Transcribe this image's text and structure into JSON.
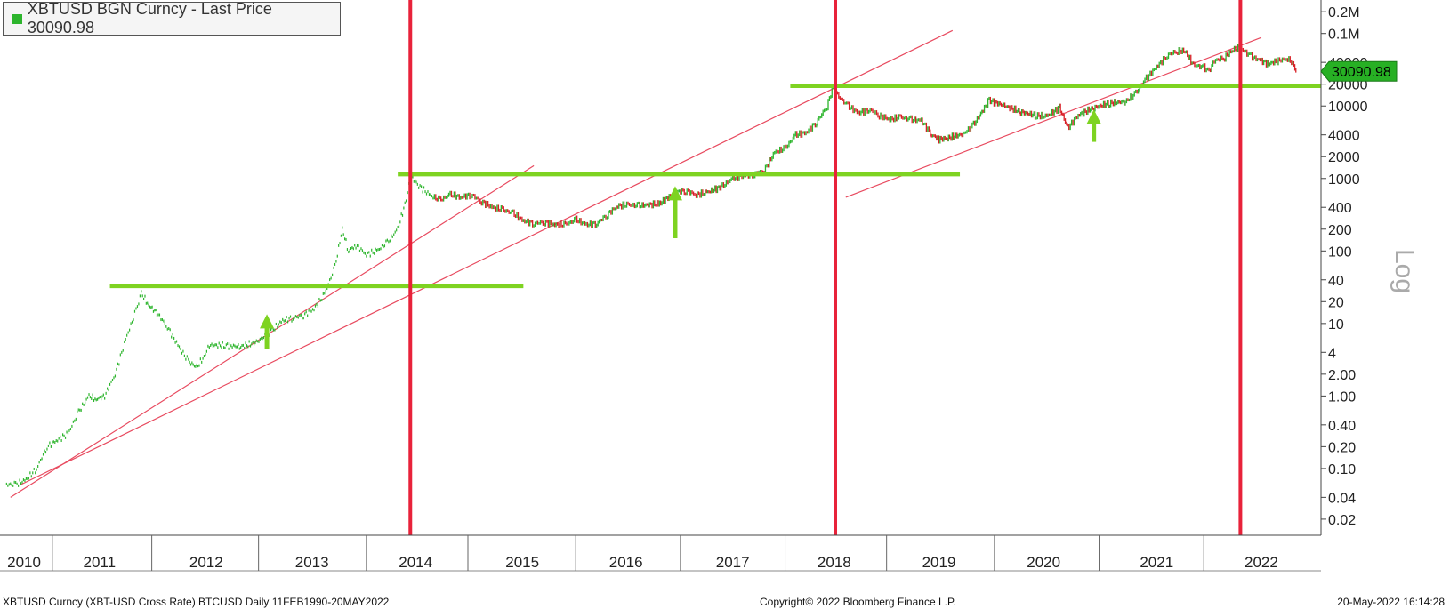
{
  "legend": {
    "label": "XBTUSD BGN Curncy - Last Price 30090.98",
    "color": "#2db52d"
  },
  "y_scale_label": "Log",
  "footer": {
    "left": "XBTUSD Curncy (XBT-USD Cross Rate) BTCUSD  Daily 11FEB1990-20MAY2022",
    "center": "Copyright© 2022 Bloomberg Finance L.P.",
    "right": "20-May-2022 16:14:28"
  },
  "colors": {
    "up": "#2db52d",
    "down": "#d81f26",
    "support": "#7ed321",
    "event": "#e8223a",
    "trend": "#e84a5f"
  },
  "chart_data": {
    "type": "line",
    "title": "XBTUSD BGN Curncy - Last Price 30090.98",
    "last_price": "30090.98",
    "y_scale": "log",
    "ylim": [
      0.012,
      290000
    ],
    "xlim": [
      2010.0,
      2022.62
    ],
    "y_ticks": [
      {
        "v": 0.02,
        "label": "0.02"
      },
      {
        "v": 0.04,
        "label": "0.04"
      },
      {
        "v": 0.1,
        "label": "0.10"
      },
      {
        "v": 0.2,
        "label": "0.20"
      },
      {
        "v": 0.4,
        "label": "0.40"
      },
      {
        "v": 1,
        "label": "1.00"
      },
      {
        "v": 2,
        "label": "2.00"
      },
      {
        "v": 4,
        "label": "4"
      },
      {
        "v": 10,
        "label": "10"
      },
      {
        "v": 20,
        "label": "20"
      },
      {
        "v": 40,
        "label": "40"
      },
      {
        "v": 100,
        "label": "100"
      },
      {
        "v": 200,
        "label": "200"
      },
      {
        "v": 400,
        "label": "400"
      },
      {
        "v": 1000,
        "label": "1000"
      },
      {
        "v": 2000,
        "label": "2000"
      },
      {
        "v": 4000,
        "label": "4000"
      },
      {
        "v": 10000,
        "label": "10000"
      },
      {
        "v": 20000,
        "label": "20000"
      },
      {
        "v": 40000,
        "label": "40000"
      },
      {
        "v": 100000,
        "label": "0.1M"
      },
      {
        "v": 200000,
        "label": "0.2M"
      }
    ],
    "x_ticks": [
      {
        "v": 2010.23,
        "label": "2010"
      },
      {
        "v": 2011.0,
        "label": "2011"
      },
      {
        "v": 2012.0,
        "label": "2012"
      },
      {
        "v": 2013.0,
        "label": "2013"
      },
      {
        "v": 2014.0,
        "label": "2014"
      },
      {
        "v": 2015.0,
        "label": "2015"
      },
      {
        "v": 2016.0,
        "label": "2016"
      },
      {
        "v": 2017.0,
        "label": "2017"
      },
      {
        "v": 2018.0,
        "label": "2018"
      },
      {
        "v": 2019.0,
        "label": "2019"
      },
      {
        "v": 2020.0,
        "label": "2020"
      },
      {
        "v": 2021.0,
        "label": "2021"
      },
      {
        "v": 2022.0,
        "label": "2022"
      }
    ],
    "series": [
      {
        "points": [
          [
            2010.05,
            0.06
          ],
          [
            2010.15,
            0.06
          ],
          [
            2010.25,
            0.07
          ],
          [
            2010.35,
            0.1
          ],
          [
            2010.45,
            0.2
          ],
          [
            2010.55,
            0.25
          ],
          [
            2010.65,
            0.3
          ],
          [
            2010.75,
            0.6
          ],
          [
            2010.85,
            1.0
          ],
          [
            2010.92,
            0.9
          ],
          [
            2011.0,
            1.0
          ],
          [
            2011.1,
            2.0
          ],
          [
            2011.2,
            6.0
          ],
          [
            2011.3,
            15.0
          ],
          [
            2011.35,
            26.0
          ],
          [
            2011.42,
            18.0
          ],
          [
            2011.5,
            14.0
          ],
          [
            2011.6,
            9.0
          ],
          [
            2011.7,
            5.0
          ],
          [
            2011.8,
            3.0
          ],
          [
            2011.88,
            2.5
          ],
          [
            2011.95,
            3.5
          ],
          [
            2012.0,
            5.0
          ],
          [
            2012.15,
            5.0
          ],
          [
            2012.3,
            4.8
          ],
          [
            2012.45,
            5.5
          ],
          [
            2012.6,
            8.0
          ],
          [
            2012.7,
            11.0
          ],
          [
            2012.8,
            12.0
          ],
          [
            2012.9,
            13.0
          ],
          [
            2013.0,
            16.0
          ],
          [
            2013.1,
            25.0
          ],
          [
            2013.2,
            60.0
          ],
          [
            2013.27,
            200.0
          ],
          [
            2013.33,
            100.0
          ],
          [
            2013.4,
            120.0
          ],
          [
            2013.5,
            90.0
          ],
          [
            2013.6,
            100.0
          ],
          [
            2013.7,
            130.0
          ],
          [
            2013.8,
            200.0
          ],
          [
            2013.88,
            500.0
          ],
          [
            2013.92,
            1100.0
          ],
          [
            2014.0,
            800.0
          ],
          [
            2014.1,
            600.0
          ],
          [
            2014.2,
            500.0
          ],
          [
            2014.3,
            600.0
          ],
          [
            2014.4,
            550.0
          ],
          [
            2014.5,
            600.0
          ],
          [
            2014.6,
            480.0
          ],
          [
            2014.7,
            400.0
          ],
          [
            2014.8,
            370.0
          ],
          [
            2014.9,
            330.0
          ],
          [
            2015.0,
            260.0
          ],
          [
            2015.1,
            240.0
          ],
          [
            2015.2,
            250.0
          ],
          [
            2015.3,
            230.0
          ],
          [
            2015.4,
            230.0
          ],
          [
            2015.5,
            270.0
          ],
          [
            2015.6,
            230.0
          ],
          [
            2015.7,
            240.0
          ],
          [
            2015.8,
            320.0
          ],
          [
            2015.9,
            420.0
          ],
          [
            2016.0,
            430.0
          ],
          [
            2016.1,
            420.0
          ],
          [
            2016.3,
            450.0
          ],
          [
            2016.45,
            650.0
          ],
          [
            2016.55,
            680.0
          ],
          [
            2016.65,
            600.0
          ],
          [
            2016.75,
            640.0
          ],
          [
            2016.9,
            780.0
          ],
          [
            2017.0,
            1000.0
          ],
          [
            2017.1,
            1100.0
          ],
          [
            2017.2,
            1150.0
          ],
          [
            2017.3,
            1300.0
          ],
          [
            2017.4,
            2300.0
          ],
          [
            2017.5,
            2600.0
          ],
          [
            2017.6,
            4000.0
          ],
          [
            2017.7,
            4300.0
          ],
          [
            2017.8,
            6000.0
          ],
          [
            2017.9,
            10000.0
          ],
          [
            2017.96,
            19000.0
          ],
          [
            2018.0,
            14000.0
          ],
          [
            2018.1,
            10000.0
          ],
          [
            2018.2,
            8000.0
          ],
          [
            2018.3,
            9000.0
          ],
          [
            2018.4,
            7500.0
          ],
          [
            2018.5,
            6500.0
          ],
          [
            2018.6,
            7000.0
          ],
          [
            2018.7,
            6500.0
          ],
          [
            2018.8,
            6300.0
          ],
          [
            2018.9,
            4000.0
          ],
          [
            2018.97,
            3500.0
          ],
          [
            2019.05,
            3600.0
          ],
          [
            2019.2,
            4100.0
          ],
          [
            2019.3,
            5500.0
          ],
          [
            2019.45,
            12000.0
          ],
          [
            2019.6,
            10000.0
          ],
          [
            2019.75,
            8300.0
          ],
          [
            2019.9,
            7400.0
          ],
          [
            2020.0,
            7200.0
          ],
          [
            2020.12,
            9500.0
          ],
          [
            2020.2,
            5000.0
          ],
          [
            2020.3,
            7500.0
          ],
          [
            2020.45,
            9500.0
          ],
          [
            2020.6,
            11000.0
          ],
          [
            2020.75,
            11500.0
          ],
          [
            2020.85,
            15000.0
          ],
          [
            2020.95,
            24000.0
          ],
          [
            2021.05,
            35000.0
          ],
          [
            2021.15,
            50000.0
          ],
          [
            2021.25,
            58000.0
          ],
          [
            2021.32,
            57000.0
          ],
          [
            2021.4,
            37000.0
          ],
          [
            2021.5,
            34000.0
          ],
          [
            2021.55,
            30000.0
          ],
          [
            2021.6,
            42000.0
          ],
          [
            2021.7,
            47000.0
          ],
          [
            2021.78,
            60000.0
          ],
          [
            2021.85,
            63000.0
          ],
          [
            2021.95,
            48000.0
          ],
          [
            2022.05,
            42000.0
          ],
          [
            2022.12,
            38000.0
          ],
          [
            2022.2,
            42000.0
          ],
          [
            2022.3,
            45000.0
          ],
          [
            2022.35,
            39000.0
          ],
          [
            2022.38,
            30090.98
          ]
        ]
      }
    ],
    "annotations": {
      "event_lines_x": [
        2013.92,
        2017.98,
        2021.85
      ],
      "support_lines": [
        {
          "y": 33,
          "x": [
            2011.05,
            2015.0
          ]
        },
        {
          "y": 1150,
          "x": [
            2013.8,
            2019.17
          ]
        },
        {
          "y": 19000,
          "x": [
            2017.55,
            2022.62
          ]
        }
      ],
      "trendlines": [
        {
          "from": [
            2010.1,
            0.04
          ],
          "to": [
            2015.1,
            1500
          ]
        },
        {
          "from": [
            2010.2,
            0.06
          ],
          "to": [
            2019.1,
            110000
          ]
        },
        {
          "from": [
            2018.08,
            550
          ],
          "to": [
            2022.05,
            88000
          ]
        }
      ],
      "arrows": [
        {
          "x": 2012.55,
          "from_y": 4.5,
          "to_y": 12.0
        },
        {
          "x": 2016.45,
          "from_y": 150,
          "to_y": 700
        },
        {
          "x": 2020.45,
          "from_y": 3200,
          "to_y": 8000
        }
      ]
    }
  }
}
